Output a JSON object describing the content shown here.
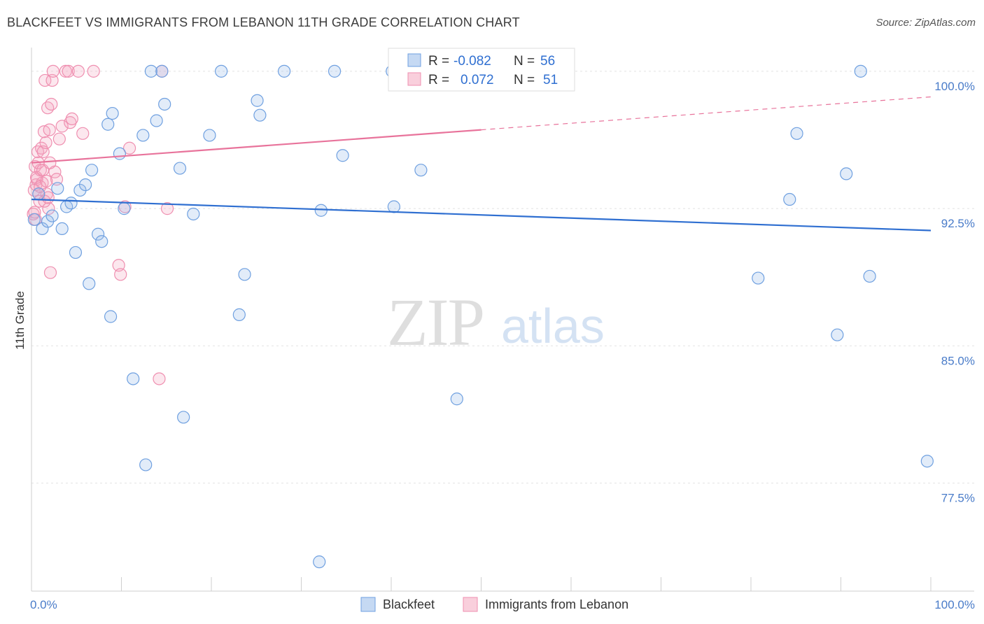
{
  "header": {
    "title": "BLACKFEET VS IMMIGRANTS FROM LEBANON 11TH GRADE CORRELATION CHART",
    "source": "Source: ZipAtlas.com"
  },
  "watermark": {
    "zip": "ZIP",
    "atlas": "atlas"
  },
  "legend_box": {
    "rows": [
      {
        "r_label": "R =",
        "r_value": "-0.082",
        "n_label": "N =",
        "n_value": "56"
      },
      {
        "r_label": "R =",
        "r_value": "0.072",
        "n_label": "N =",
        "n_value": "51"
      }
    ]
  },
  "bottom_legend": {
    "series1": "Blackfeet",
    "series2": "Immigrants from Lebanon"
  },
  "chart_data": {
    "type": "scatter",
    "title": "BLACKFEET VS IMMIGRANTS FROM LEBANON 11TH GRADE CORRELATION CHART",
    "xlabel": "",
    "ylabel": "11th Grade",
    "xlim": [
      0,
      100
    ],
    "ylim": [
      71.6,
      101.6
    ],
    "x_tick_labels": [
      "0.0%",
      "100.0%"
    ],
    "y_ticks": [
      77.5,
      85.0,
      92.5,
      100.0
    ],
    "y_tick_labels": [
      "77.5%",
      "85.0%",
      "92.5%",
      "100.0%"
    ],
    "grid": true,
    "colors": {
      "blackfeet": "#6fa0e0",
      "lebanon": "#ef8fb0",
      "blue_line": "#2f6fd1",
      "pink_line": "#e8739b"
    },
    "series": [
      {
        "name": "Blackfeet",
        "r": -0.082,
        "n": 56,
        "trend": {
          "x": [
            0,
            100
          ],
          "y": [
            93.0,
            91.3
          ]
        },
        "points": [
          [
            0.3,
            91.9
          ],
          [
            0.8,
            93.3
          ],
          [
            1.2,
            91.4
          ],
          [
            1.8,
            91.8
          ],
          [
            2.3,
            92.1
          ],
          [
            2.9,
            93.6
          ],
          [
            3.4,
            91.4
          ],
          [
            3.9,
            92.6
          ],
          [
            4.4,
            92.8
          ],
          [
            4.9,
            90.1
          ],
          [
            5.4,
            93.5
          ],
          [
            6.0,
            93.8
          ],
          [
            6.4,
            88.4
          ],
          [
            6.7,
            94.6
          ],
          [
            7.4,
            91.1
          ],
          [
            7.8,
            90.7
          ],
          [
            8.5,
            97.1
          ],
          [
            8.8,
            86.6
          ],
          [
            9.0,
            97.7
          ],
          [
            9.8,
            95.5
          ],
          [
            10.3,
            92.5
          ],
          [
            11.3,
            83.2
          ],
          [
            12.4,
            96.5
          ],
          [
            12.7,
            78.5
          ],
          [
            13.3,
            100.0
          ],
          [
            13.9,
            97.3
          ],
          [
            14.5,
            100.0
          ],
          [
            14.8,
            98.2
          ],
          [
            16.5,
            94.7
          ],
          [
            16.9,
            81.1
          ],
          [
            18.0,
            92.2
          ],
          [
            19.8,
            96.5
          ],
          [
            21.1,
            100.0
          ],
          [
            23.1,
            86.7
          ],
          [
            23.7,
            88.9
          ],
          [
            25.1,
            98.4
          ],
          [
            25.4,
            97.6
          ],
          [
            28.1,
            100.0
          ],
          [
            32.0,
            73.2
          ],
          [
            32.2,
            92.4
          ],
          [
            33.7,
            100.0
          ],
          [
            34.6,
            95.4
          ],
          [
            40.3,
            92.6
          ],
          [
            40.1,
            100.0
          ],
          [
            43.3,
            94.6
          ],
          [
            47.3,
            82.1
          ],
          [
            47.3,
            100.0
          ],
          [
            50.0,
            100.0
          ],
          [
            80.8,
            88.7
          ],
          [
            84.3,
            93.0
          ],
          [
            85.1,
            96.6
          ],
          [
            89.6,
            85.6
          ],
          [
            90.6,
            94.4
          ],
          [
            92.2,
            100.0
          ],
          [
            93.2,
            88.8
          ],
          [
            99.6,
            78.7
          ]
        ]
      },
      {
        "name": "Immigrants from Lebanon",
        "r": 0.072,
        "n": 51,
        "trend": {
          "x": [
            0,
            50
          ],
          "y": [
            95.0,
            96.8
          ]
        },
        "trend_extension": {
          "x": [
            50,
            100
          ],
          "y": [
            96.8,
            98.6
          ]
        },
        "points": [
          [
            0.2,
            92.2
          ],
          [
            0.3,
            93.5
          ],
          [
            0.4,
            94.8
          ],
          [
            0.5,
            93.8
          ],
          [
            0.6,
            94.1
          ],
          [
            0.7,
            95.6
          ],
          [
            0.8,
            93.3
          ],
          [
            0.9,
            92.9
          ],
          [
            1.0,
            94.6
          ],
          [
            1.1,
            95.8
          ],
          [
            1.2,
            93.9
          ],
          [
            1.3,
            95.6
          ],
          [
            1.4,
            96.7
          ],
          [
            1.5,
            99.5
          ],
          [
            1.6,
            96.1
          ],
          [
            1.7,
            93.3
          ],
          [
            1.8,
            98.0
          ],
          [
            1.9,
            92.5
          ],
          [
            2.0,
            96.8
          ],
          [
            2.1,
            89.0
          ],
          [
            2.2,
            98.2
          ],
          [
            2.3,
            99.5
          ],
          [
            2.4,
            100.0
          ],
          [
            2.6,
            94.5
          ],
          [
            2.8,
            94.1
          ],
          [
            3.1,
            96.3
          ],
          [
            3.4,
            97.0
          ],
          [
            3.8,
            100.0
          ],
          [
            4.1,
            100.0
          ],
          [
            4.3,
            97.2
          ],
          [
            4.5,
            97.4
          ],
          [
            5.2,
            100.0
          ],
          [
            5.7,
            96.6
          ],
          [
            6.9,
            100.0
          ],
          [
            9.7,
            89.4
          ],
          [
            9.9,
            88.9
          ],
          [
            10.4,
            92.6
          ],
          [
            10.9,
            95.8
          ],
          [
            14.5,
            100.0
          ],
          [
            14.2,
            83.2
          ],
          [
            15.1,
            92.5
          ],
          [
            0.35,
            92.3
          ],
          [
            0.55,
            94.2
          ],
          [
            0.75,
            95.0
          ],
          [
            0.95,
            93.7
          ],
          [
            1.25,
            94.6
          ],
          [
            1.45,
            92.9
          ],
          [
            1.65,
            94.0
          ],
          [
            1.85,
            93.1
          ],
          [
            2.05,
            95.0
          ],
          [
            0.45,
            91.9
          ]
        ]
      }
    ]
  }
}
